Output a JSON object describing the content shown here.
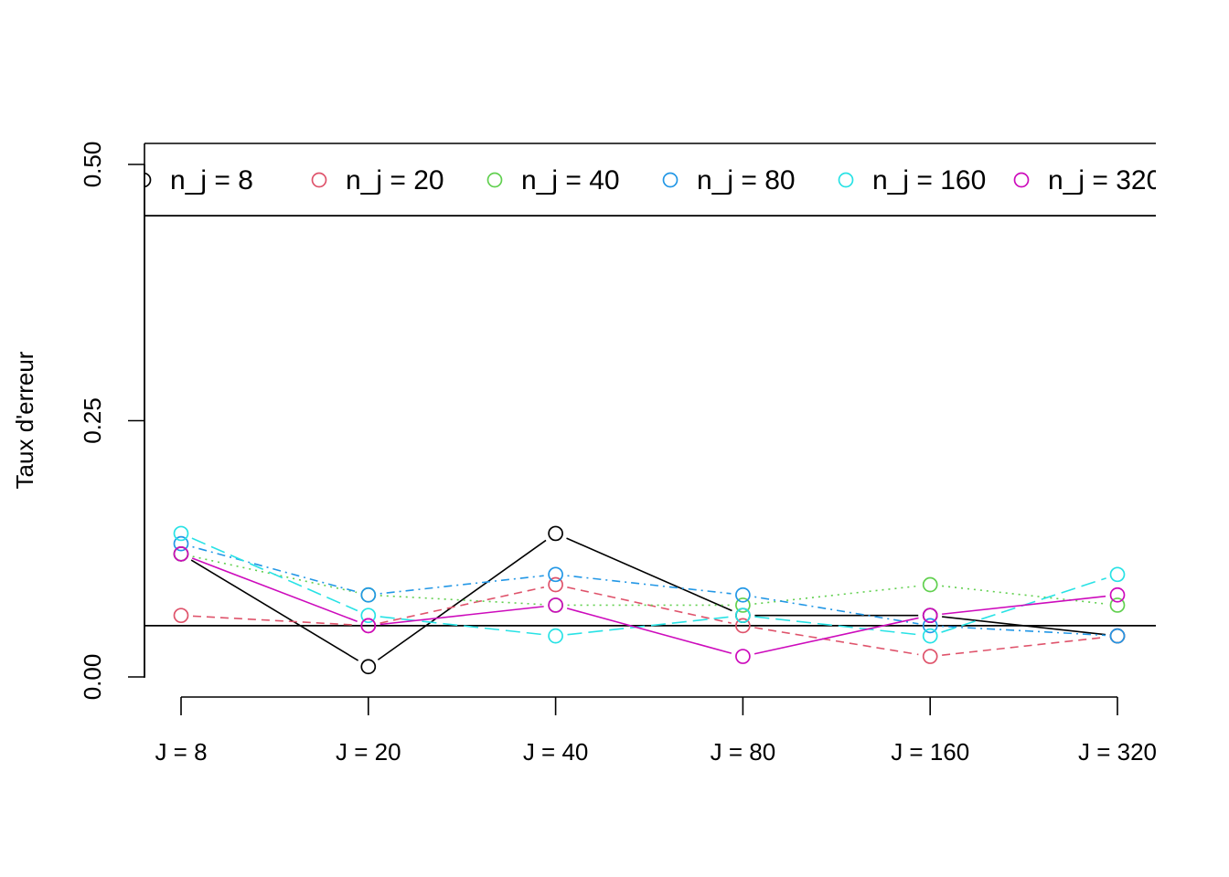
{
  "chart_data": {
    "type": "line",
    "ylabel": "Taux d'erreur",
    "xlabel": "",
    "title": "",
    "ylim": [
      0,
      0.5
    ],
    "yticks": [
      "0.00",
      "0.25",
      "0.50"
    ],
    "categories": [
      "J = 8",
      "J = 20",
      "J = 40",
      "J = 80",
      "J = 160",
      "J = 320"
    ],
    "reference_lines": [
      0.05,
      0.45
    ],
    "legend_position": "top",
    "series": [
      {
        "name": "n_j = 8",
        "color": "#000000",
        "dash": "solid",
        "values": [
          0.12,
          0.01,
          0.14,
          0.06,
          0.06,
          0.04
        ]
      },
      {
        "name": "n_j = 20",
        "color": "#DF536B",
        "dash": "dashed",
        "values": [
          0.06,
          0.05,
          0.09,
          0.05,
          0.02,
          0.04
        ]
      },
      {
        "name": "n_j = 40",
        "color": "#61D04F",
        "dash": "dotted",
        "values": [
          0.12,
          0.08,
          0.07,
          0.07,
          0.09,
          0.07
        ]
      },
      {
        "name": "n_j = 80",
        "color": "#2297E6",
        "dash": "dotdash",
        "values": [
          0.13,
          0.08,
          0.1,
          0.08,
          0.05,
          0.04
        ]
      },
      {
        "name": "n_j = 160",
        "color": "#28E2E5",
        "dash": "longdash",
        "values": [
          0.14,
          0.06,
          0.04,
          0.06,
          0.04,
          0.1
        ]
      },
      {
        "name": "n_j = 320",
        "color": "#CD0BBC",
        "dash": "solid",
        "values": [
          0.12,
          0.05,
          0.07,
          0.02,
          0.06,
          0.08
        ]
      }
    ]
  }
}
